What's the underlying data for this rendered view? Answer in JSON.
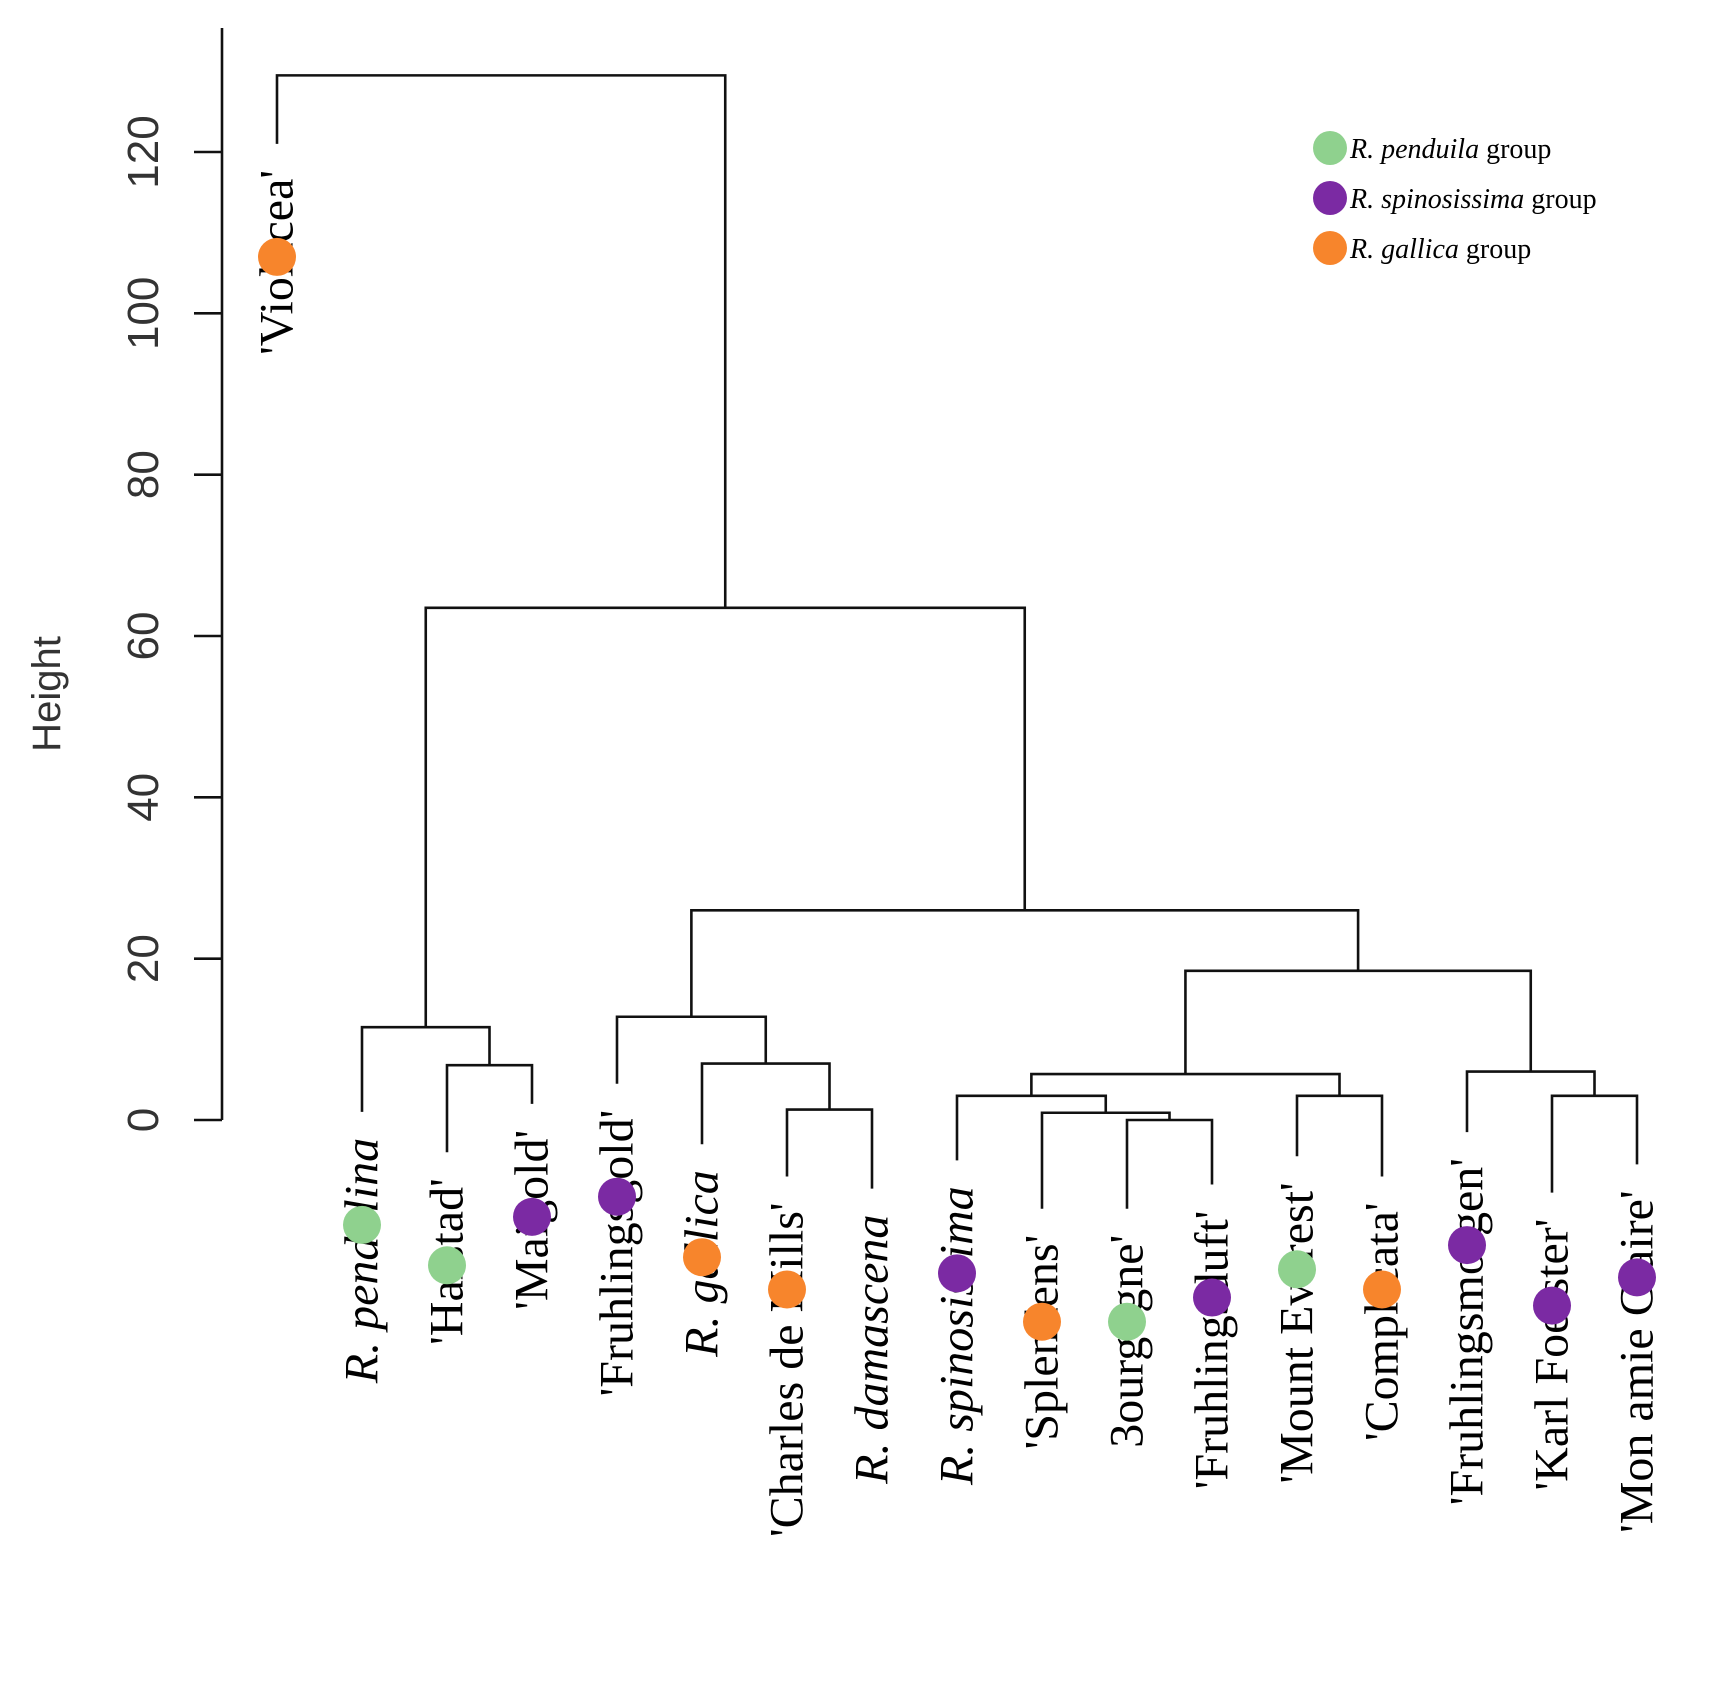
{
  "chart_data": {
    "type": "dendrogram",
    "title": "",
    "ylabel": "Height",
    "xlabel": "",
    "ylim": [
      0,
      130
    ],
    "y_ticks": [
      0,
      20,
      40,
      60,
      80,
      100,
      120
    ],
    "legend": {
      "placement": "top-right",
      "entries": [
        {
          "group": "penduila",
          "italic": "R. penduila",
          "suffix": " group",
          "color": "#8fd18e"
        },
        {
          "group": "spinosissima",
          "italic": "R. spinosissima",
          "suffix": " group",
          "color": "#7b2aa3"
        },
        {
          "group": "gallica",
          "italic": "R. gallica",
          "suffix": " group",
          "color": "#f7852c"
        }
      ]
    },
    "leaves": [
      {
        "id": "violacea",
        "label": "'Violacea'",
        "italic": false,
        "group": "gallica"
      },
      {
        "id": "pendulina",
        "label": "R. pendulina",
        "italic": true,
        "group": "penduila"
      },
      {
        "id": "harstad",
        "label": "'Harstad'",
        "italic": false,
        "group": "penduila"
      },
      {
        "id": "maigold",
        "label": "'Maigold'",
        "italic": false,
        "group": "spinosissima"
      },
      {
        "id": "fruhlingsgold",
        "label": "'Fruhlingsgold'",
        "italic": false,
        "group": "spinosissima"
      },
      {
        "id": "gallica",
        "label": "R. gallica",
        "italic": true,
        "group": "gallica"
      },
      {
        "id": "charles",
        "label": "'Charles de Mills'",
        "italic": false,
        "group": "gallica"
      },
      {
        "id": "damascena",
        "label": "R. damascena",
        "italic": true,
        "group": null
      },
      {
        "id": "spinosissima",
        "label": "R. spinosissima",
        "italic": true,
        "group": "spinosissima"
      },
      {
        "id": "splendens",
        "label": "'Splendens'",
        "italic": false,
        "group": "gallica"
      },
      {
        "id": "bourgogne",
        "label": "3ourgogne'",
        "italic": false,
        "group": "penduila"
      },
      {
        "id": "fruhlingsduft",
        "label": "'Fruhlingsduft'",
        "italic": false,
        "group": "spinosissima"
      },
      {
        "id": "everest",
        "label": "'Mount Everest'",
        "italic": false,
        "group": "penduila"
      },
      {
        "id": "complicata",
        "label": "'Complicata'",
        "italic": false,
        "group": "gallica"
      },
      {
        "id": "fruhlingsmorgen",
        "label": "'Fruhlingsmorgen'",
        "italic": false,
        "group": "spinosissima"
      },
      {
        "id": "karl",
        "label": "'Karl Foerster'",
        "italic": false,
        "group": "spinosissima"
      },
      {
        "id": "monamie",
        "label": "'Mon amie Claire'",
        "italic": false,
        "group": "spinosissima"
      }
    ],
    "leaf_heights": {
      "violacea": 121,
      "pendulina": 1,
      "harstad": -4,
      "maigold": 2,
      "fruhlingsgold": 4.5,
      "gallica": -3,
      "charles": -7,
      "damascena": -8.5,
      "spinosissima": -5,
      "splendens": -11,
      "bourgogne": -11,
      "fruhlingsduft": -8,
      "everest": -4.5,
      "complicata": -7,
      "fruhlingsmorgen": -1.5,
      "karl": -9,
      "monamie": -5.5
    },
    "merges": [
      {
        "id": "m_harstad_maigold",
        "children": [
          "harstad",
          "maigold"
        ],
        "height": 6.8
      },
      {
        "id": "m_pendulina_grp",
        "children": [
          "pendulina",
          "m_harstad_maigold"
        ],
        "height": 11.5
      },
      {
        "id": "m_charles_damascena",
        "children": [
          "charles",
          "damascena"
        ],
        "height": 1.3
      },
      {
        "id": "m_gallica_grp",
        "children": [
          "gallica",
          "m_charles_damascena"
        ],
        "height": 7.0
      },
      {
        "id": "m_gold_grp",
        "children": [
          "fruhlingsgold",
          "m_gallica_grp"
        ],
        "height": 12.8
      },
      {
        "id": "m_bourg_duft",
        "children": [
          "bourgogne",
          "fruhlingsduft"
        ],
        "height": 0
      },
      {
        "id": "m_splendens_grp",
        "children": [
          "splendens",
          "m_bourg_duft"
        ],
        "height": 0.9
      },
      {
        "id": "m_spino_grp",
        "children": [
          "spinosissima",
          "m_splendens_grp"
        ],
        "height": 3.0
      },
      {
        "id": "m_everest_compl",
        "children": [
          "everest",
          "complicata"
        ],
        "height": 3.0
      },
      {
        "id": "m_mid_grp",
        "children": [
          "m_spino_grp",
          "m_everest_compl"
        ],
        "height": 5.7
      },
      {
        "id": "m_karl_mon",
        "children": [
          "karl",
          "monamie"
        ],
        "height": 3.0
      },
      {
        "id": "m_morgen_grp",
        "children": [
          "fruhlingsmorgen",
          "m_karl_mon"
        ],
        "height": 6.0
      },
      {
        "id": "m_right_grp",
        "children": [
          "m_mid_grp",
          "m_morgen_grp"
        ],
        "height": 18.5
      },
      {
        "id": "m_center_grp",
        "children": [
          "m_gold_grp",
          "m_right_grp"
        ],
        "height": 26.0
      },
      {
        "id": "m_main_grp",
        "children": [
          "m_pendulina_grp",
          "m_center_grp"
        ],
        "height": 63.5
      },
      {
        "id": "m_root",
        "children": [
          "violacea",
          "m_main_grp"
        ],
        "height": 129.5
      }
    ]
  }
}
